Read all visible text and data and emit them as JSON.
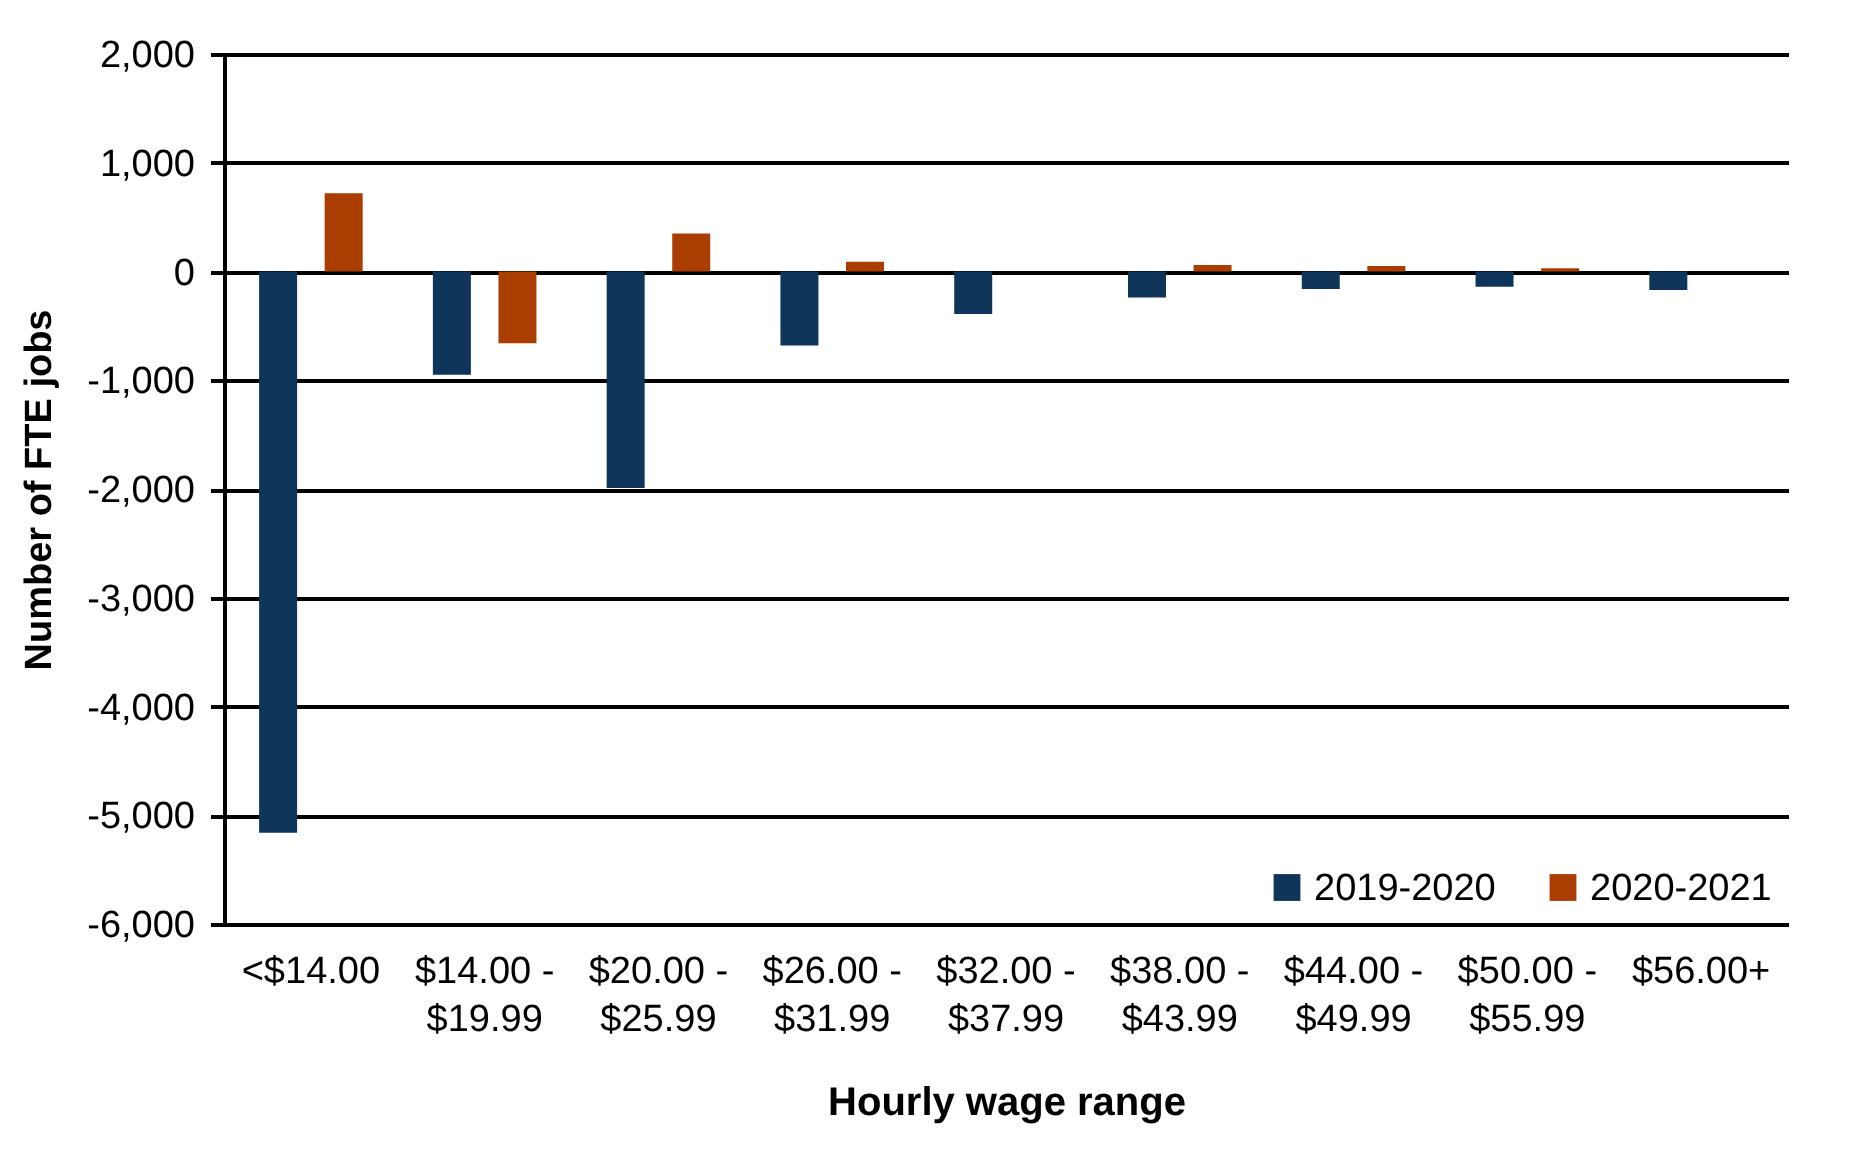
{
  "chart_data": {
    "type": "bar",
    "xlabel": "Hourly wage range",
    "ylabel": "Number of FTE jobs",
    "categories": [
      "<$14.00",
      "$14.00 -\n$19.99",
      "$20.00 -\n$25.99",
      "$26.00 -\n$31.99",
      "$32.00 -\n$37.99",
      "$38.00 -\n$43.99",
      "$44.00 -\n$49.99",
      "$50.00 -\n$55.99",
      "$56.00+"
    ],
    "series": [
      {
        "name": "2019-2020",
        "color": "#10355a",
        "values": [
          -5160,
          -950,
          -1990,
          -680,
          -390,
          -240,
          -160,
          -140,
          -170
        ]
      },
      {
        "name": "2020-2021",
        "color": "#aa3d00",
        "values": [
          720,
          -660,
          350,
          90,
          null,
          60,
          50,
          30,
          null
        ]
      }
    ],
    "ylim": [
      -6000,
      2000
    ],
    "yticks": [
      {
        "value": -6000,
        "label": "-6,000"
      },
      {
        "value": -5000,
        "label": "-5,000"
      },
      {
        "value": -4000,
        "label": "-4,000"
      },
      {
        "value": -3000,
        "label": "-3,000"
      },
      {
        "value": -2000,
        "label": "-2,000"
      },
      {
        "value": -1000,
        "label": "-1,000"
      },
      0,
      {
        "value": 1000,
        "label": "1,000"
      },
      {
        "value": 2000,
        "label": "2,000"
      }
    ],
    "grid": "y",
    "legend": "bottom right"
  }
}
